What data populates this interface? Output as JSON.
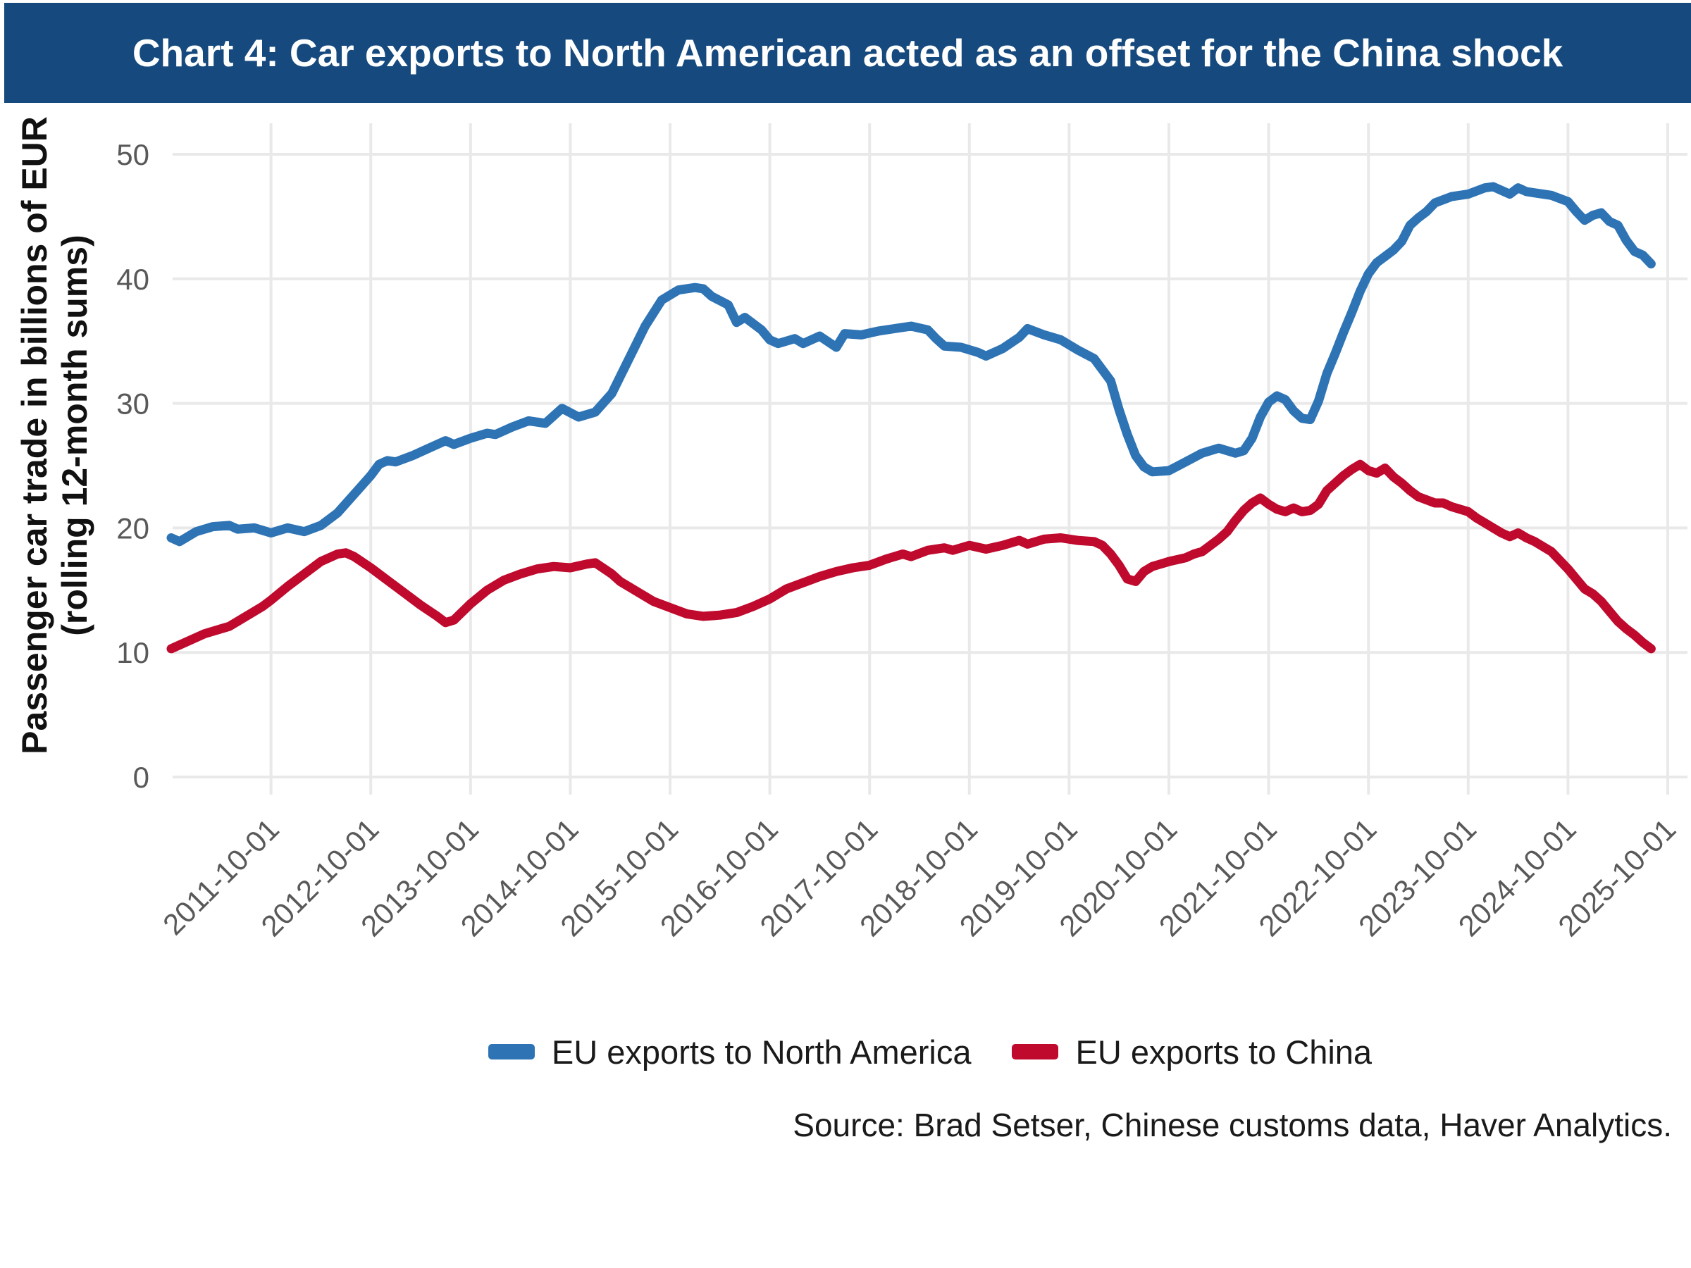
{
  "header": {
    "title": "Chart 4: Car exports to North American acted as an offset for the China shock",
    "background_color": "#164a7e",
    "text_color": "#ffffff"
  },
  "y_axis": {
    "title_line1": "Passenger car trade in billions of EUR",
    "title_line2": "(rolling 12-month sums)",
    "tick_labels": [
      "0",
      "10",
      "20",
      "30",
      "40",
      "50"
    ],
    "tick_values": [
      0,
      10,
      20,
      30,
      40,
      50
    ]
  },
  "x_axis": {
    "tick_labels": [
      "2011-10-01",
      "2012-10-01",
      "2013-10-01",
      "2014-10-01",
      "2015-10-01",
      "2016-10-01",
      "2017-10-01",
      "2018-10-01",
      "2019-10-01",
      "2020-10-01",
      "2021-10-01",
      "2022-10-01",
      "2023-10-01",
      "2024-10-01",
      "2025-10-01"
    ]
  },
  "legend": [
    {
      "label": "EU exports to North America",
      "color": "#2e74b5"
    },
    {
      "label": "EU exports to China",
      "color": "#bf0a2e"
    }
  ],
  "source": "Source: Brad Setser, Chinese customs data, Haver Analytics.",
  "colors": {
    "blue_line": "#2e74b5",
    "red_line": "#bf0a2e",
    "gridline": "#e9e9e9",
    "tick_text": "#595959"
  },
  "chart_data": {
    "type": "line",
    "title": "Chart 4: Car exports to North American acted as an offset for the China shock",
    "xlabel": "",
    "ylabel": "Passenger car trade in billions of EUR (rolling 12-month sums)",
    "ylim": [
      0,
      50
    ],
    "x_range": [
      "2010-10",
      "2025-08"
    ],
    "grid": true,
    "legend_position": "bottom",
    "series": [
      {
        "name": "EU exports to North America",
        "color": "#2e74b5",
        "points": [
          [
            "2010-10",
            19.2
          ],
          [
            "2010-11",
            18.9
          ],
          [
            "2011-01",
            19.7
          ],
          [
            "2011-03",
            20.1
          ],
          [
            "2011-05",
            20.2
          ],
          [
            "2011-06",
            19.9
          ],
          [
            "2011-08",
            20.0
          ],
          [
            "2011-10",
            19.6
          ],
          [
            "2011-12",
            20.0
          ],
          [
            "2012-02",
            19.7
          ],
          [
            "2012-04",
            20.2
          ],
          [
            "2012-06",
            21.2
          ],
          [
            "2012-08",
            22.7
          ],
          [
            "2012-10",
            24.2
          ],
          [
            "2012-11",
            25.1
          ],
          [
            "2012-12",
            25.4
          ],
          [
            "2013-01",
            25.3
          ],
          [
            "2013-03",
            25.8
          ],
          [
            "2013-05",
            26.4
          ],
          [
            "2013-07",
            27.0
          ],
          [
            "2013-08",
            26.7
          ],
          [
            "2013-10",
            27.2
          ],
          [
            "2013-12",
            27.6
          ],
          [
            "2014-01",
            27.5
          ],
          [
            "2014-03",
            28.1
          ],
          [
            "2014-05",
            28.6
          ],
          [
            "2014-07",
            28.4
          ],
          [
            "2014-09",
            29.6
          ],
          [
            "2014-11",
            28.9
          ],
          [
            "2015-01",
            29.3
          ],
          [
            "2015-03",
            30.8
          ],
          [
            "2015-05",
            33.5
          ],
          [
            "2015-07",
            36.2
          ],
          [
            "2015-09",
            38.3
          ],
          [
            "2015-11",
            39.1
          ],
          [
            "2016-01",
            39.3
          ],
          [
            "2016-02",
            39.2
          ],
          [
            "2016-03",
            38.6
          ],
          [
            "2016-05",
            37.9
          ],
          [
            "2016-06",
            36.5
          ],
          [
            "2016-07",
            36.9
          ],
          [
            "2016-09",
            35.9
          ],
          [
            "2016-10",
            35.1
          ],
          [
            "2016-11",
            34.8
          ],
          [
            "2017-01",
            35.2
          ],
          [
            "2017-02",
            34.8
          ],
          [
            "2017-04",
            35.4
          ],
          [
            "2017-06",
            34.5
          ],
          [
            "2017-07",
            35.6
          ],
          [
            "2017-09",
            35.5
          ],
          [
            "2017-11",
            35.8
          ],
          [
            "2018-01",
            36.0
          ],
          [
            "2018-03",
            36.2
          ],
          [
            "2018-05",
            35.9
          ],
          [
            "2018-06",
            35.2
          ],
          [
            "2018-07",
            34.6
          ],
          [
            "2018-09",
            34.5
          ],
          [
            "2018-11",
            34.1
          ],
          [
            "2018-12",
            33.8
          ],
          [
            "2019-02",
            34.4
          ],
          [
            "2019-04",
            35.3
          ],
          [
            "2019-05",
            36.0
          ],
          [
            "2019-07",
            35.5
          ],
          [
            "2019-09",
            35.1
          ],
          [
            "2019-11",
            34.3
          ],
          [
            "2020-01",
            33.6
          ],
          [
            "2020-03",
            31.8
          ],
          [
            "2020-04",
            29.5
          ],
          [
            "2020-05",
            27.5
          ],
          [
            "2020-06",
            25.8
          ],
          [
            "2020-07",
            24.9
          ],
          [
            "2020-08",
            24.5
          ],
          [
            "2020-10",
            24.6
          ],
          [
            "2020-12",
            25.3
          ],
          [
            "2021-02",
            26.0
          ],
          [
            "2021-04",
            26.4
          ],
          [
            "2021-06",
            26.0
          ],
          [
            "2021-07",
            26.2
          ],
          [
            "2021-08",
            27.2
          ],
          [
            "2021-09",
            28.9
          ],
          [
            "2021-10",
            30.1
          ],
          [
            "2021-11",
            30.6
          ],
          [
            "2021-12",
            30.3
          ],
          [
            "2022-01",
            29.4
          ],
          [
            "2022-02",
            28.8
          ],
          [
            "2022-03",
            28.7
          ],
          [
            "2022-04",
            30.2
          ],
          [
            "2022-05",
            32.4
          ],
          [
            "2022-06",
            34.0
          ],
          [
            "2022-07",
            35.7
          ],
          [
            "2022-08",
            37.3
          ],
          [
            "2022-09",
            39.0
          ],
          [
            "2022-10",
            40.4
          ],
          [
            "2022-11",
            41.3
          ],
          [
            "2022-12",
            41.8
          ],
          [
            "2023-01",
            42.3
          ],
          [
            "2023-02",
            43.0
          ],
          [
            "2023-03",
            44.3
          ],
          [
            "2023-04",
            44.9
          ],
          [
            "2023-05",
            45.4
          ],
          [
            "2023-06",
            46.1
          ],
          [
            "2023-08",
            46.6
          ],
          [
            "2023-10",
            46.8
          ],
          [
            "2023-12",
            47.3
          ],
          [
            "2024-01",
            47.4
          ],
          [
            "2024-02",
            47.1
          ],
          [
            "2024-03",
            46.8
          ],
          [
            "2024-04",
            47.3
          ],
          [
            "2024-05",
            47.0
          ],
          [
            "2024-06",
            46.9
          ],
          [
            "2024-08",
            46.7
          ],
          [
            "2024-10",
            46.2
          ],
          [
            "2024-11",
            45.4
          ],
          [
            "2024-12",
            44.7
          ],
          [
            "2025-01",
            45.1
          ],
          [
            "2025-02",
            45.3
          ],
          [
            "2025-03",
            44.6
          ],
          [
            "2025-04",
            44.3
          ],
          [
            "2025-05",
            43.1
          ],
          [
            "2025-06",
            42.2
          ],
          [
            "2025-07",
            41.9
          ],
          [
            "2025-08",
            41.2
          ]
        ]
      },
      {
        "name": "EU exports to China",
        "color": "#bf0a2e",
        "points": [
          [
            "2010-10",
            10.3
          ],
          [
            "2010-12",
            10.9
          ],
          [
            "2011-02",
            11.5
          ],
          [
            "2011-04",
            11.9
          ],
          [
            "2011-05",
            12.1
          ],
          [
            "2011-07",
            12.9
          ],
          [
            "2011-09",
            13.7
          ],
          [
            "2011-10",
            14.2
          ],
          [
            "2011-12",
            15.3
          ],
          [
            "2012-02",
            16.3
          ],
          [
            "2012-04",
            17.3
          ],
          [
            "2012-06",
            17.9
          ],
          [
            "2012-07",
            18.0
          ],
          [
            "2012-08",
            17.7
          ],
          [
            "2012-10",
            16.8
          ],
          [
            "2012-12",
            15.8
          ],
          [
            "2013-02",
            14.8
          ],
          [
            "2013-04",
            13.8
          ],
          [
            "2013-06",
            12.9
          ],
          [
            "2013-07",
            12.4
          ],
          [
            "2013-08",
            12.6
          ],
          [
            "2013-10",
            13.9
          ],
          [
            "2013-12",
            15.0
          ],
          [
            "2014-02",
            15.8
          ],
          [
            "2014-04",
            16.3
          ],
          [
            "2014-06",
            16.7
          ],
          [
            "2014-08",
            16.9
          ],
          [
            "2014-10",
            16.8
          ],
          [
            "2014-12",
            17.1
          ],
          [
            "2015-01",
            17.2
          ],
          [
            "2015-03",
            16.3
          ],
          [
            "2015-04",
            15.7
          ],
          [
            "2015-06",
            14.9
          ],
          [
            "2015-08",
            14.1
          ],
          [
            "2015-10",
            13.6
          ],
          [
            "2015-12",
            13.1
          ],
          [
            "2016-02",
            12.9
          ],
          [
            "2016-04",
            13.0
          ],
          [
            "2016-06",
            13.2
          ],
          [
            "2016-08",
            13.7
          ],
          [
            "2016-10",
            14.3
          ],
          [
            "2016-12",
            15.1
          ],
          [
            "2017-02",
            15.6
          ],
          [
            "2017-04",
            16.1
          ],
          [
            "2017-06",
            16.5
          ],
          [
            "2017-08",
            16.8
          ],
          [
            "2017-10",
            17.0
          ],
          [
            "2017-12",
            17.5
          ],
          [
            "2018-02",
            17.9
          ],
          [
            "2018-03",
            17.7
          ],
          [
            "2018-05",
            18.2
          ],
          [
            "2018-07",
            18.4
          ],
          [
            "2018-08",
            18.2
          ],
          [
            "2018-10",
            18.6
          ],
          [
            "2018-12",
            18.3
          ],
          [
            "2019-02",
            18.6
          ],
          [
            "2019-04",
            19.0
          ],
          [
            "2019-05",
            18.7
          ],
          [
            "2019-07",
            19.1
          ],
          [
            "2019-09",
            19.2
          ],
          [
            "2019-11",
            19.0
          ],
          [
            "2020-01",
            18.9
          ],
          [
            "2020-02",
            18.6
          ],
          [
            "2020-03",
            17.9
          ],
          [
            "2020-04",
            17.0
          ],
          [
            "2020-05",
            15.9
          ],
          [
            "2020-06",
            15.7
          ],
          [
            "2020-07",
            16.5
          ],
          [
            "2020-08",
            16.9
          ],
          [
            "2020-09",
            17.1
          ],
          [
            "2020-10",
            17.3
          ],
          [
            "2020-12",
            17.6
          ],
          [
            "2021-01",
            17.9
          ],
          [
            "2021-02",
            18.1
          ],
          [
            "2021-03",
            18.6
          ],
          [
            "2021-04",
            19.1
          ],
          [
            "2021-05",
            19.7
          ],
          [
            "2021-06",
            20.6
          ],
          [
            "2021-07",
            21.4
          ],
          [
            "2021-08",
            22.0
          ],
          [
            "2021-09",
            22.4
          ],
          [
            "2021-10",
            21.9
          ],
          [
            "2021-11",
            21.5
          ],
          [
            "2021-12",
            21.3
          ],
          [
            "2022-01",
            21.6
          ],
          [
            "2022-02",
            21.3
          ],
          [
            "2022-03",
            21.4
          ],
          [
            "2022-04",
            21.9
          ],
          [
            "2022-05",
            23.0
          ],
          [
            "2022-06",
            23.6
          ],
          [
            "2022-07",
            24.2
          ],
          [
            "2022-08",
            24.7
          ],
          [
            "2022-09",
            25.1
          ],
          [
            "2022-10",
            24.6
          ],
          [
            "2022-11",
            24.4
          ],
          [
            "2022-12",
            24.8
          ],
          [
            "2023-01",
            24.1
          ],
          [
            "2023-02",
            23.6
          ],
          [
            "2023-03",
            23.0
          ],
          [
            "2023-04",
            22.5
          ],
          [
            "2023-06",
            22.0
          ],
          [
            "2023-07",
            22.0
          ],
          [
            "2023-08",
            21.7
          ],
          [
            "2023-10",
            21.3
          ],
          [
            "2023-11",
            20.8
          ],
          [
            "2023-12",
            20.4
          ],
          [
            "2024-01",
            20.0
          ],
          [
            "2024-02",
            19.6
          ],
          [
            "2024-03",
            19.3
          ],
          [
            "2024-04",
            19.6
          ],
          [
            "2024-05",
            19.2
          ],
          [
            "2024-06",
            18.9
          ],
          [
            "2024-07",
            18.5
          ],
          [
            "2024-08",
            18.1
          ],
          [
            "2024-09",
            17.4
          ],
          [
            "2024-10",
            16.7
          ],
          [
            "2024-11",
            15.9
          ],
          [
            "2024-12",
            15.1
          ],
          [
            "2025-01",
            14.7
          ],
          [
            "2025-02",
            14.1
          ],
          [
            "2025-03",
            13.3
          ],
          [
            "2025-04",
            12.5
          ],
          [
            "2025-05",
            11.9
          ],
          [
            "2025-06",
            11.4
          ],
          [
            "2025-07",
            10.8
          ],
          [
            "2025-08",
            10.3
          ]
        ]
      }
    ]
  }
}
